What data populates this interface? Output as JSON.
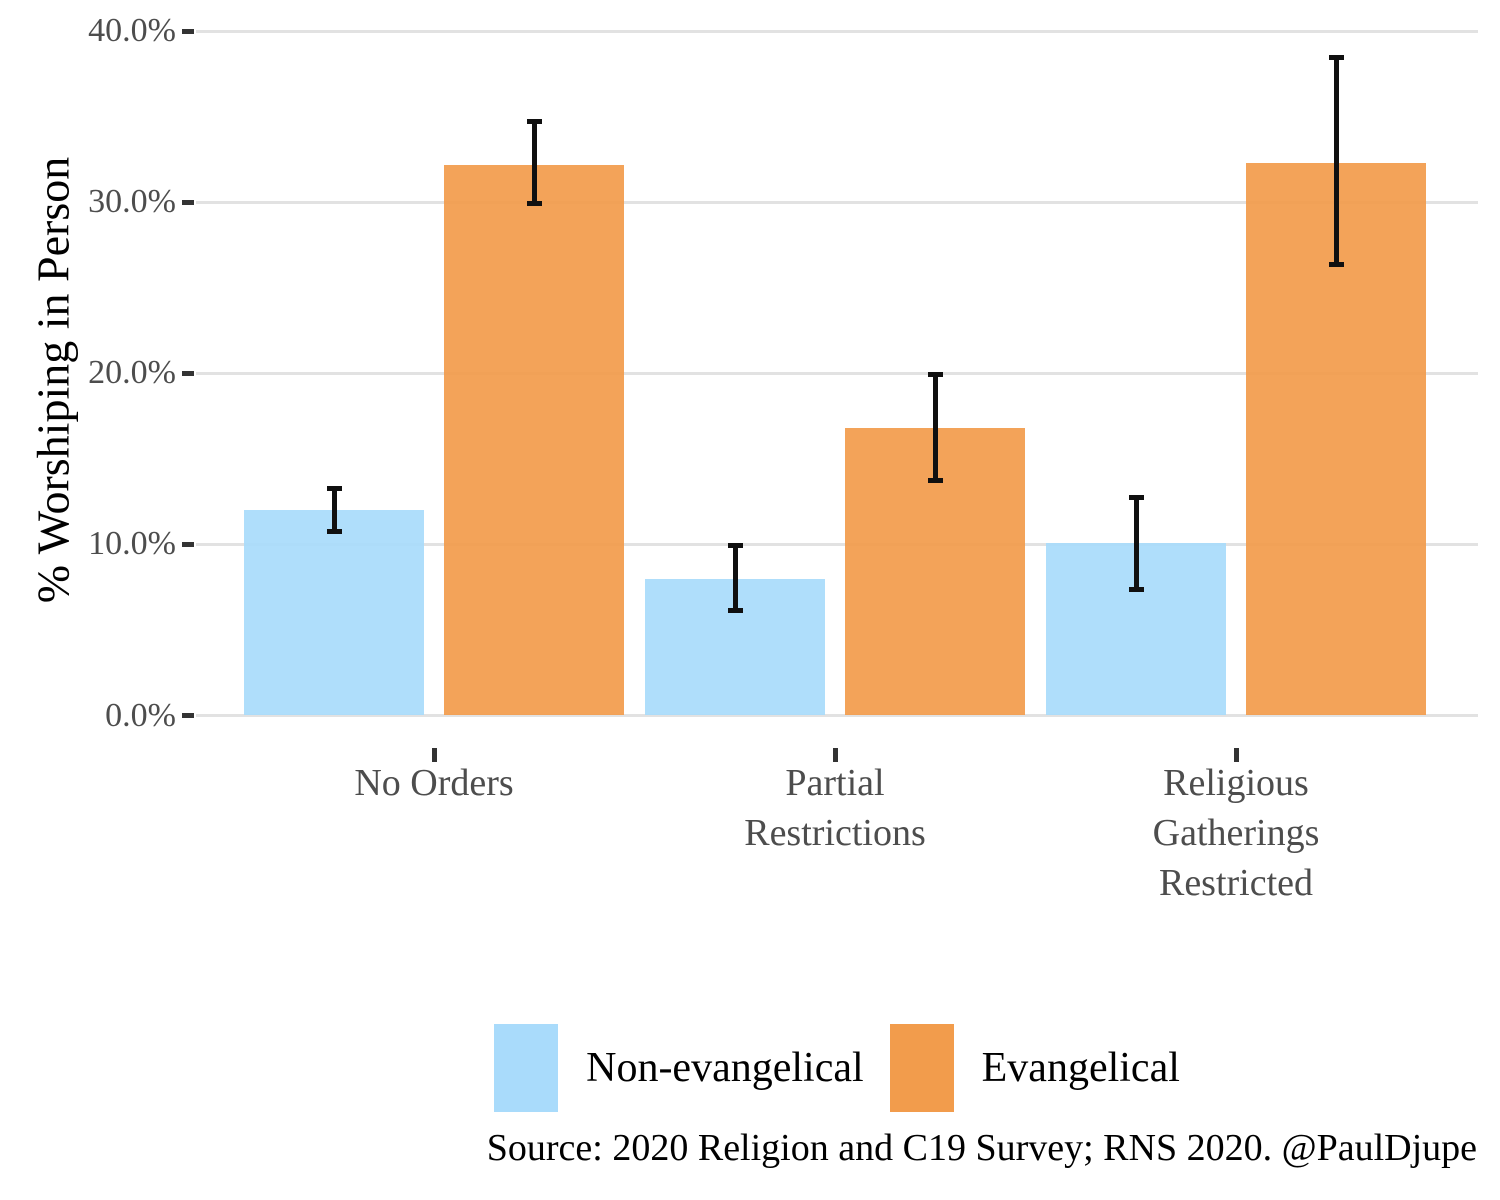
{
  "chart_data": {
    "type": "bar",
    "title": "",
    "xlabel": "",
    "ylabel": "% Worshiping in Person",
    "caption": "Source: 2020 Religion and C19 Survey; RNS 2020. @PaulDjupe",
    "ylim": [
      0,
      40
    ],
    "grid": "horizontal major gridlines only, light gray on white",
    "legend_position": "bottom",
    "bar_layout": "dodged pairs with black error bars",
    "yticks": [
      {
        "value": 0,
        "label": "0.0%"
      },
      {
        "value": 10,
        "label": "10.0%"
      },
      {
        "value": 20,
        "label": "20.0%"
      },
      {
        "value": 30,
        "label": "30.0%"
      },
      {
        "value": 40,
        "label": "40.0%"
      }
    ],
    "categories": [
      {
        "id": "no-orders",
        "label_lines": [
          "No Orders"
        ]
      },
      {
        "id": "partial-restrictions",
        "label_lines": [
          "Partial",
          "Restrictions"
        ]
      },
      {
        "id": "religious-gatherings-restricted",
        "label_lines": [
          "Religious",
          "Gatherings",
          "Restricted"
        ]
      }
    ],
    "series": [
      {
        "name": "Non-evangelical",
        "color": "#A9DBFB",
        "values": [
          12.0,
          8.0,
          10.1
        ],
        "ci_low": [
          10.6,
          6.0,
          7.2
        ],
        "ci_high": [
          13.4,
          10.1,
          12.9
        ]
      },
      {
        "name": "Evangelical",
        "color": "#F29C4C",
        "values": [
          32.2,
          16.8,
          32.3
        ],
        "ci_low": [
          29.8,
          13.6,
          26.2
        ],
        "ci_high": [
          34.9,
          20.1,
          38.6
        ]
      }
    ],
    "colors": {
      "grid": "#E2E2E2",
      "tick_mark": "#333333",
      "axis_text": "#4D4D4D",
      "error_bar": "#101010",
      "text": "#000000",
      "background": "#FFFFFF"
    }
  }
}
